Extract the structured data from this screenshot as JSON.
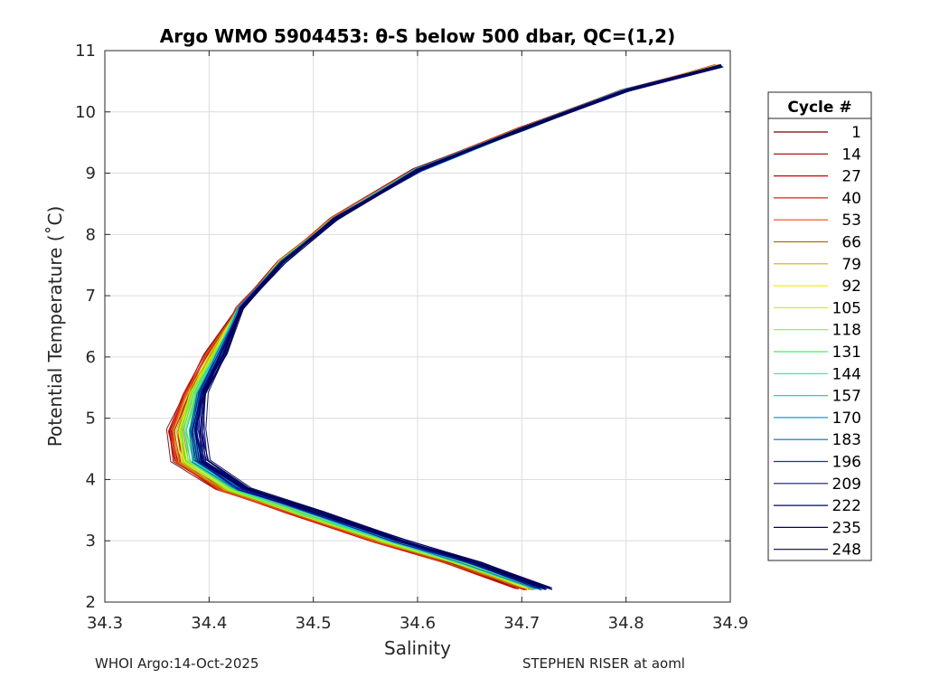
{
  "chart_data": {
    "type": "line",
    "title": "Argo WMO 5904453: θ-S below 500 dbar,  QC=(1,2)",
    "xlabel": "Salinity",
    "ylabel": "Potential Temperature (˚C)",
    "xlim": [
      34.3,
      34.9
    ],
    "ylim": [
      2,
      11
    ],
    "xticks": [
      "34.3",
      "34.4",
      "34.5",
      "34.6",
      "34.7",
      "34.8",
      "34.9"
    ],
    "yticks": [
      "2",
      "3",
      "4",
      "5",
      "6",
      "7",
      "8",
      "9",
      "10",
      "11"
    ],
    "grid": true,
    "legend": {
      "title": "Cycle #",
      "placement": "outside-right",
      "entries": [
        {
          "label": "1",
          "color": "#7a0000"
        },
        {
          "label": "14",
          "color": "#a00000"
        },
        {
          "label": "27",
          "color": "#cc0000"
        },
        {
          "label": "40",
          "color": "#e02010"
        },
        {
          "label": "53",
          "color": "#e84a1a"
        },
        {
          "label": "66",
          "color": "#b07000"
        },
        {
          "label": "79",
          "color": "#d0b000"
        },
        {
          "label": "92",
          "color": "#f0f000"
        },
        {
          "label": "105",
          "color": "#c8f020"
        },
        {
          "label": "118",
          "color": "#80f040"
        },
        {
          "label": "131",
          "color": "#40f060"
        },
        {
          "label": "144",
          "color": "#30e0a0"
        },
        {
          "label": "157",
          "color": "#20d0d0"
        },
        {
          "label": "170",
          "color": "#10a0d0"
        },
        {
          "label": "183",
          "color": "#0070b0"
        },
        {
          "label": "196",
          "color": "#0040a0"
        },
        {
          "label": "209",
          "color": "#1010a0"
        },
        {
          "label": "222",
          "color": "#000080"
        },
        {
          "label": "235",
          "color": "#000066"
        },
        {
          "label": "248",
          "color": "#000050"
        }
      ]
    },
    "profile_shape": {
      "description_points": [
        {
          "s": 34.89,
          "t": 10.75
        },
        {
          "s": 34.8,
          "t": 10.35
        },
        {
          "s": 34.7,
          "t": 9.72
        },
        {
          "s": 34.6,
          "t": 9.05
        },
        {
          "s": 34.52,
          "t": 8.25
        },
        {
          "s": 34.47,
          "t": 7.55
        },
        {
          "s": 34.43,
          "t": 6.8
        },
        {
          "s": 34.405,
          "t": 6.05
        },
        {
          "s": 34.385,
          "t": 5.4
        },
        {
          "s": 34.375,
          "t": 4.8
        },
        {
          "s": 34.38,
          "t": 4.3
        },
        {
          "s": 34.42,
          "t": 3.85
        },
        {
          "s": 34.49,
          "t": 3.45
        },
        {
          "s": 34.57,
          "t": 3.0
        },
        {
          "s": 34.64,
          "t": 2.65
        },
        {
          "s": 34.71,
          "t": 2.22
        }
      ]
    }
  },
  "footer": {
    "left": "WHOI Argo:14-Oct-2025",
    "right": "STEPHEN RISER at aoml"
  }
}
